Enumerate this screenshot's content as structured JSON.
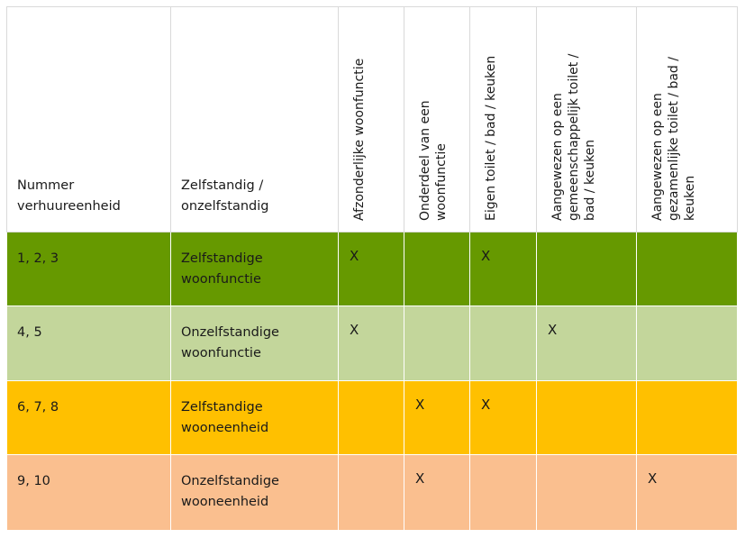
{
  "headers": {
    "col1": [
      "Nummer",
      "verhuureenheid"
    ],
    "col2": [
      "Zelfstandig /",
      "onzelfstandig"
    ],
    "col3": [
      "Afzonderlijke woonfunctie"
    ],
    "col4": [
      "Onderdeel van een",
      "woonfunctie"
    ],
    "col5": [
      "Eigen toilet / bad / keuken"
    ],
    "col6": [
      "Aangewezen op een",
      "gemeenschappelijk toilet /",
      "bad / keuken"
    ],
    "col7": [
      "Aangewezen op een",
      "gezamenlijke toilet / bad /",
      "keuken"
    ]
  },
  "rows": [
    {
      "nummer": "1, 2, 3",
      "type": [
        "Zelfstandige",
        "woonfunctie"
      ],
      "marks": [
        "X",
        "",
        "X",
        "",
        ""
      ],
      "color": "#669900"
    },
    {
      "nummer": "4, 5",
      "type": [
        "Onzelfstandige",
        "woonfunctie"
      ],
      "marks": [
        "X",
        "",
        "",
        "X",
        ""
      ],
      "color": "#c3d69b"
    },
    {
      "nummer": "6, 7, 8",
      "type": [
        "Zelfstandige",
        "wooneenheid"
      ],
      "marks": [
        "",
        "X",
        "X",
        "",
        ""
      ],
      "color": "#ffc000"
    },
    {
      "nummer": "9, 10",
      "type": [
        "Onzelfstandige",
        "wooneenheid"
      ],
      "marks": [
        "",
        "X",
        "",
        "",
        "X"
      ],
      "color": "#fabf8f"
    }
  ]
}
